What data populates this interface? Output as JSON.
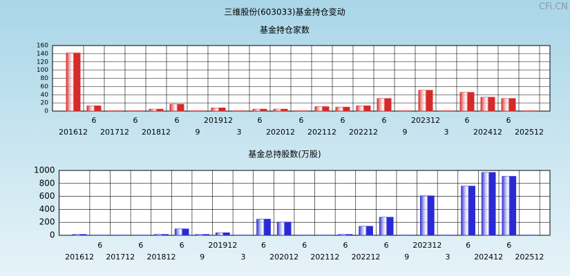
{
  "title": "三维股份(603033)基金持仓变动",
  "watermark": "CFi.CN",
  "chart_data": [
    {
      "type": "bar",
      "title": "基金持仓家数",
      "color": "#d42a2a",
      "grid": true,
      "categories": [
        "201612",
        "6",
        "201712",
        "6",
        "201812",
        "6",
        "9",
        "201912",
        "3",
        "6",
        "202012",
        "6",
        "202112",
        "6",
        "202212",
        "6",
        "9",
        "202312",
        "3",
        "6",
        "202412",
        "6",
        "202512"
      ],
      "values": [
        142,
        13,
        1,
        1,
        5,
        17,
        1,
        8,
        1,
        5,
        5,
        1,
        11,
        10,
        13,
        31,
        1,
        51,
        1,
        46,
        34,
        31,
        1
      ],
      "ylim": [
        0,
        160
      ],
      "yticks": [
        0,
        20,
        40,
        60,
        80,
        100,
        120,
        140,
        160
      ]
    },
    {
      "type": "bar",
      "title": "基金总持股数(万股)",
      "color": "#2a2ad4",
      "grid": true,
      "categories": [
        "201612",
        "6",
        "201712",
        "6",
        "201812",
        "6",
        "9",
        "201912",
        "3",
        "6",
        "202012",
        "6",
        "202112",
        "6",
        "202212",
        "6",
        "9",
        "202312",
        "3",
        "6",
        "202412",
        "6",
        "202512"
      ],
      "values": [
        15,
        5,
        5,
        5,
        15,
        100,
        15,
        40,
        5,
        250,
        205,
        5,
        5,
        15,
        140,
        280,
        5,
        610,
        5,
        760,
        970,
        910,
        5
      ],
      "ylim": [
        0,
        1000
      ],
      "yticks": [
        0,
        200,
        400,
        600,
        800,
        1000
      ]
    }
  ]
}
